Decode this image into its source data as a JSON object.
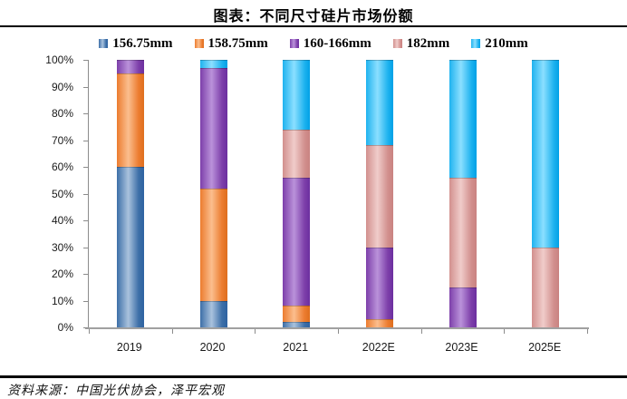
{
  "title": "图表：不同尺寸硅片市场份额",
  "source": "资料来源：中国光伏协会，泽平宏观",
  "chart_data": {
    "type": "bar",
    "stacked": true,
    "unit": "%",
    "title": "图表：不同尺寸硅片市场份额",
    "categories": [
      "2019",
      "2020",
      "2021",
      "2022E",
      "2023E",
      "2025E"
    ],
    "series": [
      {
        "name": "156.75mm",
        "values": [
          60,
          10,
          2,
          0,
          0,
          0
        ],
        "color": "#3D6FA8",
        "light": "#A9C2DD",
        "dark": "#2E62A1"
      },
      {
        "name": "158.75mm",
        "values": [
          35,
          42,
          6,
          3,
          0,
          0
        ],
        "color": "#EC7C2F",
        "light": "#FBBE8E",
        "dark": "#DE6F1E"
      },
      {
        "name": "160-166mm",
        "values": [
          5,
          45,
          48,
          27,
          15,
          0
        ],
        "color": "#7D3FAA",
        "light": "#BA92DA",
        "dark": "#6C2F9F"
      },
      {
        "name": "182mm",
        "values": [
          0,
          0,
          18,
          38,
          41,
          30
        ],
        "color": "#D2908E",
        "light": "#F0CCCA",
        "dark": "#C98280"
      },
      {
        "name": "210mm",
        "values": [
          0,
          3,
          26,
          32,
          44,
          70
        ],
        "color": "#1FB3EF",
        "light": "#8BDFFF",
        "dark": "#00A0E6"
      }
    ],
    "y_ticks": [
      "0%",
      "10%",
      "20%",
      "30%",
      "40%",
      "50%",
      "60%",
      "70%",
      "80%",
      "90%",
      "100%"
    ],
    "ylim": [
      0,
      100
    ],
    "xlabel": "",
    "ylabel": "",
    "grid": false,
    "legend_position": "top",
    "axis_color": "#8c8c8c"
  }
}
